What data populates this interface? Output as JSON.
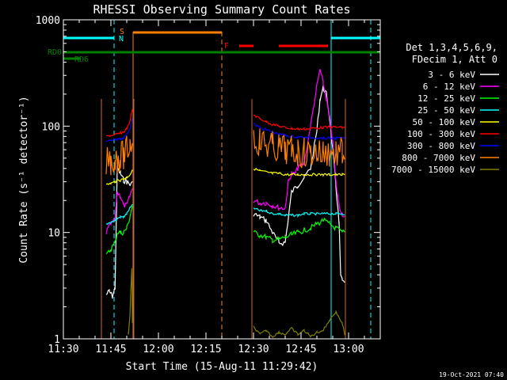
{
  "chart_data": {
    "type": "line",
    "title": "RHESSI Observing Summary Count Rates",
    "xlabel": "Start Time (15-Aug-11 11:29:42)",
    "ylabel": "Count Rate (s⁻¹ detector⁻¹)",
    "y_scale": "log",
    "ylim": [
      1,
      1000
    ],
    "xlim_minutes_from_1130": [
      0,
      100
    ],
    "x_ticks": [
      {
        "t": 0,
        "label": "11:30"
      },
      {
        "t": 15,
        "label": "11:45"
      },
      {
        "t": 30,
        "label": "12:00"
      },
      {
        "t": 45,
        "label": "12:15"
      },
      {
        "t": 60,
        "label": "12:30"
      },
      {
        "t": 75,
        "label": "12:45"
      },
      {
        "t": 90,
        "label": "13:00"
      }
    ],
    "y_ticks": [
      {
        "v": 1,
        "label": "1"
      },
      {
        "v": 10,
        "label": "10"
      },
      {
        "v": 100,
        "label": "100"
      },
      {
        "v": 1000,
        "label": "1000"
      }
    ],
    "legend_header": [
      "Det 1,3,4,5,6,9,",
      "FDecim 1, Att 0"
    ],
    "series": [
      {
        "name": "3 - 6 keV",
        "color": "#ffffff",
        "segments": [
          [
            [
              13.5,
              2.6
            ],
            [
              14.5,
              2.8
            ],
            [
              15.5,
              2.5
            ],
            [
              16.3,
              3.0
            ],
            [
              17,
              40
            ],
            [
              18,
              36
            ],
            [
              19,
              31
            ],
            [
              20,
              30
            ],
            [
              21,
              28
            ],
            [
              21.8,
              29
            ]
          ],
          [
            [
              60,
              15
            ],
            [
              62,
              14
            ],
            [
              64,
              13
            ],
            [
              66,
              10
            ],
            [
              68,
              8
            ],
            [
              70,
              8
            ],
            [
              72,
              24
            ],
            [
              74,
              28
            ],
            [
              76,
              33
            ],
            [
              78,
              40
            ],
            [
              80,
              90
            ],
            [
              81,
              180
            ],
            [
              82,
              230
            ],
            [
              83,
              200
            ],
            [
              84,
              120
            ],
            [
              85,
              60
            ],
            [
              86,
              28
            ],
            [
              87,
              12
            ],
            [
              87.5,
              4
            ],
            [
              88,
              3.5
            ],
            [
              88.8,
              3.3
            ]
          ]
        ]
      },
      {
        "name": "6 - 12 keV",
        "color": "#ff00ff",
        "segments": [
          [
            [
              13.5,
              10
            ],
            [
              15,
              12
            ],
            [
              16.3,
              13
            ],
            [
              17,
              24
            ],
            [
              18,
              22
            ],
            [
              19,
              18
            ],
            [
              20,
              18
            ],
            [
              21,
              22
            ],
            [
              21.8,
              26
            ]
          ],
          [
            [
              60,
              20
            ],
            [
              62,
              19
            ],
            [
              64,
              19
            ],
            [
              66,
              18
            ],
            [
              68,
              17
            ],
            [
              70,
              17
            ],
            [
              71,
              30
            ],
            [
              72,
              36
            ],
            [
              73,
              35
            ],
            [
              74,
              40
            ],
            [
              76,
              45
            ],
            [
              78,
              100
            ],
            [
              80,
              240
            ],
            [
              81,
              340
            ],
            [
              82,
              250
            ],
            [
              83,
              180
            ],
            [
              84,
              120
            ],
            [
              85,
              70
            ],
            [
              86,
              30
            ],
            [
              87,
              18
            ],
            [
              88,
              15
            ],
            [
              88.8,
              14
            ]
          ]
        ]
      },
      {
        "name": "12 - 25 keV",
        "color": "#00ff00",
        "segments": [
          [
            [
              13.5,
              6
            ],
            [
              15,
              7
            ],
            [
              16.3,
              8
            ],
            [
              17,
              10
            ],
            [
              18,
              10
            ],
            [
              19,
              10
            ],
            [
              20,
              11
            ],
            [
              21,
              14
            ],
            [
              21.8,
              18
            ]
          ],
          [
            [
              60,
              10
            ],
            [
              62,
              9.5
            ],
            [
              64,
              9
            ],
            [
              66,
              8.5
            ],
            [
              68,
              8.6
            ],
            [
              70,
              9
            ],
            [
              72,
              9.5
            ],
            [
              74,
              10
            ],
            [
              76,
              10.5
            ],
            [
              78,
              11
            ],
            [
              80,
              12
            ],
            [
              82,
              13
            ],
            [
              84,
              12
            ],
            [
              86,
              11
            ],
            [
              88,
              10
            ],
            [
              88.8,
              10
            ]
          ]
        ]
      },
      {
        "name": "25 - 50 keV",
        "color": "#00ffff",
        "segments": [
          [
            [
              13.5,
              12
            ],
            [
              15,
              12.5
            ],
            [
              16.3,
              13
            ],
            [
              17,
              13.5
            ],
            [
              18,
              14
            ],
            [
              19,
              14
            ],
            [
              20,
              15
            ],
            [
              21,
              17
            ],
            [
              21.8,
              18
            ]
          ],
          [
            [
              60,
              17
            ],
            [
              62,
              16
            ],
            [
              64,
              16
            ],
            [
              66,
              15
            ],
            [
              68,
              15
            ],
            [
              70,
              14.5
            ],
            [
              72,
              14.5
            ],
            [
              74,
              14.5
            ],
            [
              76,
              15
            ],
            [
              78,
              15
            ],
            [
              80,
              15
            ],
            [
              82,
              15
            ],
            [
              84,
              15
            ],
            [
              86,
              15
            ],
            [
              88,
              15
            ],
            [
              88.8,
              15
            ]
          ]
        ]
      },
      {
        "name": "50 - 100 keV",
        "color": "#ffff00",
        "segments": [
          [
            [
              13.5,
              28
            ],
            [
              15,
              29
            ],
            [
              16.3,
              30
            ],
            [
              17,
              31
            ],
            [
              18,
              31
            ],
            [
              19,
              32
            ],
            [
              20,
              33
            ],
            [
              21,
              35
            ],
            [
              21.8,
              38
            ]
          ],
          [
            [
              60,
              40
            ],
            [
              62,
              38
            ],
            [
              64,
              37
            ],
            [
              66,
              36
            ],
            [
              68,
              36
            ],
            [
              70,
              35
            ],
            [
              72,
              35
            ],
            [
              74,
              35
            ],
            [
              76,
              35
            ],
            [
              78,
              35
            ],
            [
              80,
              35
            ],
            [
              82,
              35
            ],
            [
              84,
              35
            ],
            [
              86,
              35
            ],
            [
              88,
              35
            ],
            [
              88.8,
              35
            ]
          ]
        ]
      },
      {
        "name": "100 - 300 keV",
        "color": "#ff0000",
        "segments": [
          [
            [
              13.5,
              80
            ],
            [
              15,
              82
            ],
            [
              16.3,
              83
            ],
            [
              17,
              84
            ],
            [
              18,
              86
            ],
            [
              19,
              88
            ],
            [
              20,
              95
            ],
            [
              21,
              110
            ],
            [
              21.8,
              145
            ]
          ],
          [
            [
              60,
              128
            ],
            [
              62,
              118
            ],
            [
              64,
              110
            ],
            [
              66,
              104
            ],
            [
              68,
              100
            ],
            [
              70,
              97
            ],
            [
              72,
              95
            ],
            [
              74,
              94
            ],
            [
              76,
              94
            ],
            [
              78,
              95
            ],
            [
              80,
              96
            ],
            [
              82,
              97
            ],
            [
              84,
              98
            ],
            [
              86,
              98
            ],
            [
              88,
              97
            ],
            [
              88.8,
              97
            ]
          ]
        ]
      },
      {
        "name": "300 - 800 keV",
        "color": "#0000ff",
        "segments": [
          [
            [
              13.5,
              72
            ],
            [
              15,
              73
            ],
            [
              16.3,
              74
            ],
            [
              17,
              75
            ],
            [
              18,
              76
            ],
            [
              19,
              78
            ],
            [
              20,
              84
            ],
            [
              21,
              95
            ],
            [
              21.8,
              118
            ]
          ],
          [
            [
              60,
              105
            ],
            [
              62,
              97
            ],
            [
              64,
              92
            ],
            [
              66,
              88
            ],
            [
              68,
              84
            ],
            [
              70,
              82
            ],
            [
              72,
              80
            ],
            [
              74,
              79
            ],
            [
              76,
              78
            ],
            [
              78,
              78
            ],
            [
              80,
              78
            ],
            [
              82,
              77
            ],
            [
              84,
              77
            ],
            [
              86,
              77
            ],
            [
              88,
              77
            ],
            [
              88.8,
              77
            ]
          ]
        ]
      },
      {
        "name": "800 - 7000 keV",
        "color": "#ff8000",
        "segments": [
          [
            [
              13.5,
              46
            ],
            [
              15,
              48
            ],
            [
              16.3,
              49
            ],
            [
              17,
              50
            ],
            [
              18,
              51
            ],
            [
              19,
              53
            ],
            [
              20,
              58
            ],
            [
              21,
              68
            ],
            [
              21.8,
              82
            ]
          ],
          [
            [
              60,
              78
            ],
            [
              62,
              72
            ],
            [
              64,
              68
            ],
            [
              66,
              64
            ],
            [
              68,
              62
            ],
            [
              70,
              60
            ],
            [
              72,
              58
            ],
            [
              74,
              57
            ],
            [
              76,
              56
            ],
            [
              78,
              56
            ],
            [
              80,
              56
            ],
            [
              82,
              56
            ],
            [
              84,
              56
            ],
            [
              86,
              56
            ],
            [
              88,
              56
            ],
            [
              88.8,
              56
            ]
          ]
        ]
      },
      {
        "name": "7000 - 15000 keV",
        "color": "#808000",
        "segments": [
          [
            [
              20.5,
              1.1
            ],
            [
              21,
              1.6
            ],
            [
              21.3,
              3.0
            ],
            [
              21.6,
              4.5
            ],
            [
              21.8,
              1.4
            ]
          ],
          [
            [
              60,
              1.3
            ],
            [
              62,
              1.1
            ],
            [
              64,
              1.2
            ],
            [
              66,
              1.05
            ],
            [
              68,
              1.15
            ],
            [
              70,
              1.1
            ],
            [
              72,
              1.25
            ],
            [
              74,
              1.1
            ],
            [
              76,
              1.2
            ],
            [
              78,
              1.05
            ],
            [
              80,
              1.15
            ],
            [
              82,
              1.2
            ],
            [
              84,
              1.5
            ],
            [
              86,
              1.8
            ],
            [
              88,
              1.4
            ],
            [
              88.8,
              1.1
            ]
          ]
        ]
      }
    ],
    "drops": [
      {
        "t": 12.0,
        "series": [
          0,
          1,
          2,
          3,
          4,
          5,
          6,
          7
        ]
      },
      {
        "t": 22.2,
        "series": [
          0,
          1,
          2,
          3,
          4,
          5,
          6,
          7
        ]
      },
      {
        "t": 59.5,
        "series": [
          0,
          1,
          2,
          3,
          4,
          5,
          6,
          7
        ]
      },
      {
        "t": 89.0,
        "series": [
          0,
          1,
          2,
          3,
          4,
          5,
          6,
          7
        ]
      }
    ],
    "annotations": {
      "rd0_label": "RD0",
      "rd6_label": "RD6",
      "n_label": "N",
      "s_label": "S",
      "f_label": "F",
      "saa_spans": [
        [
          0,
          16
        ],
        [
          84.5,
          100
        ]
      ],
      "night_lines": [
        16.0,
        97.0
      ],
      "day_lines": [
        0.0,
        84.5
      ],
      "saa_orange_span": [
        22,
        50
      ],
      "saa_orange_lines": [
        22.0,
        50.0
      ],
      "flare_spans": [
        [
          55.5,
          60.0
        ],
        [
          68.0,
          83.5
        ]
      ],
      "rd0_span": [
        0,
        100
      ],
      "rd6_span": [
        0,
        2.5
      ]
    },
    "colors": {
      "saa": "#00ffff",
      "night": "#00ffff",
      "s_marker": "#ff8000",
      "flare": "#ff0000",
      "rd0": "#008000",
      "axis": "#ffffff"
    },
    "timestamp": "19-Oct-2021 07:40"
  }
}
